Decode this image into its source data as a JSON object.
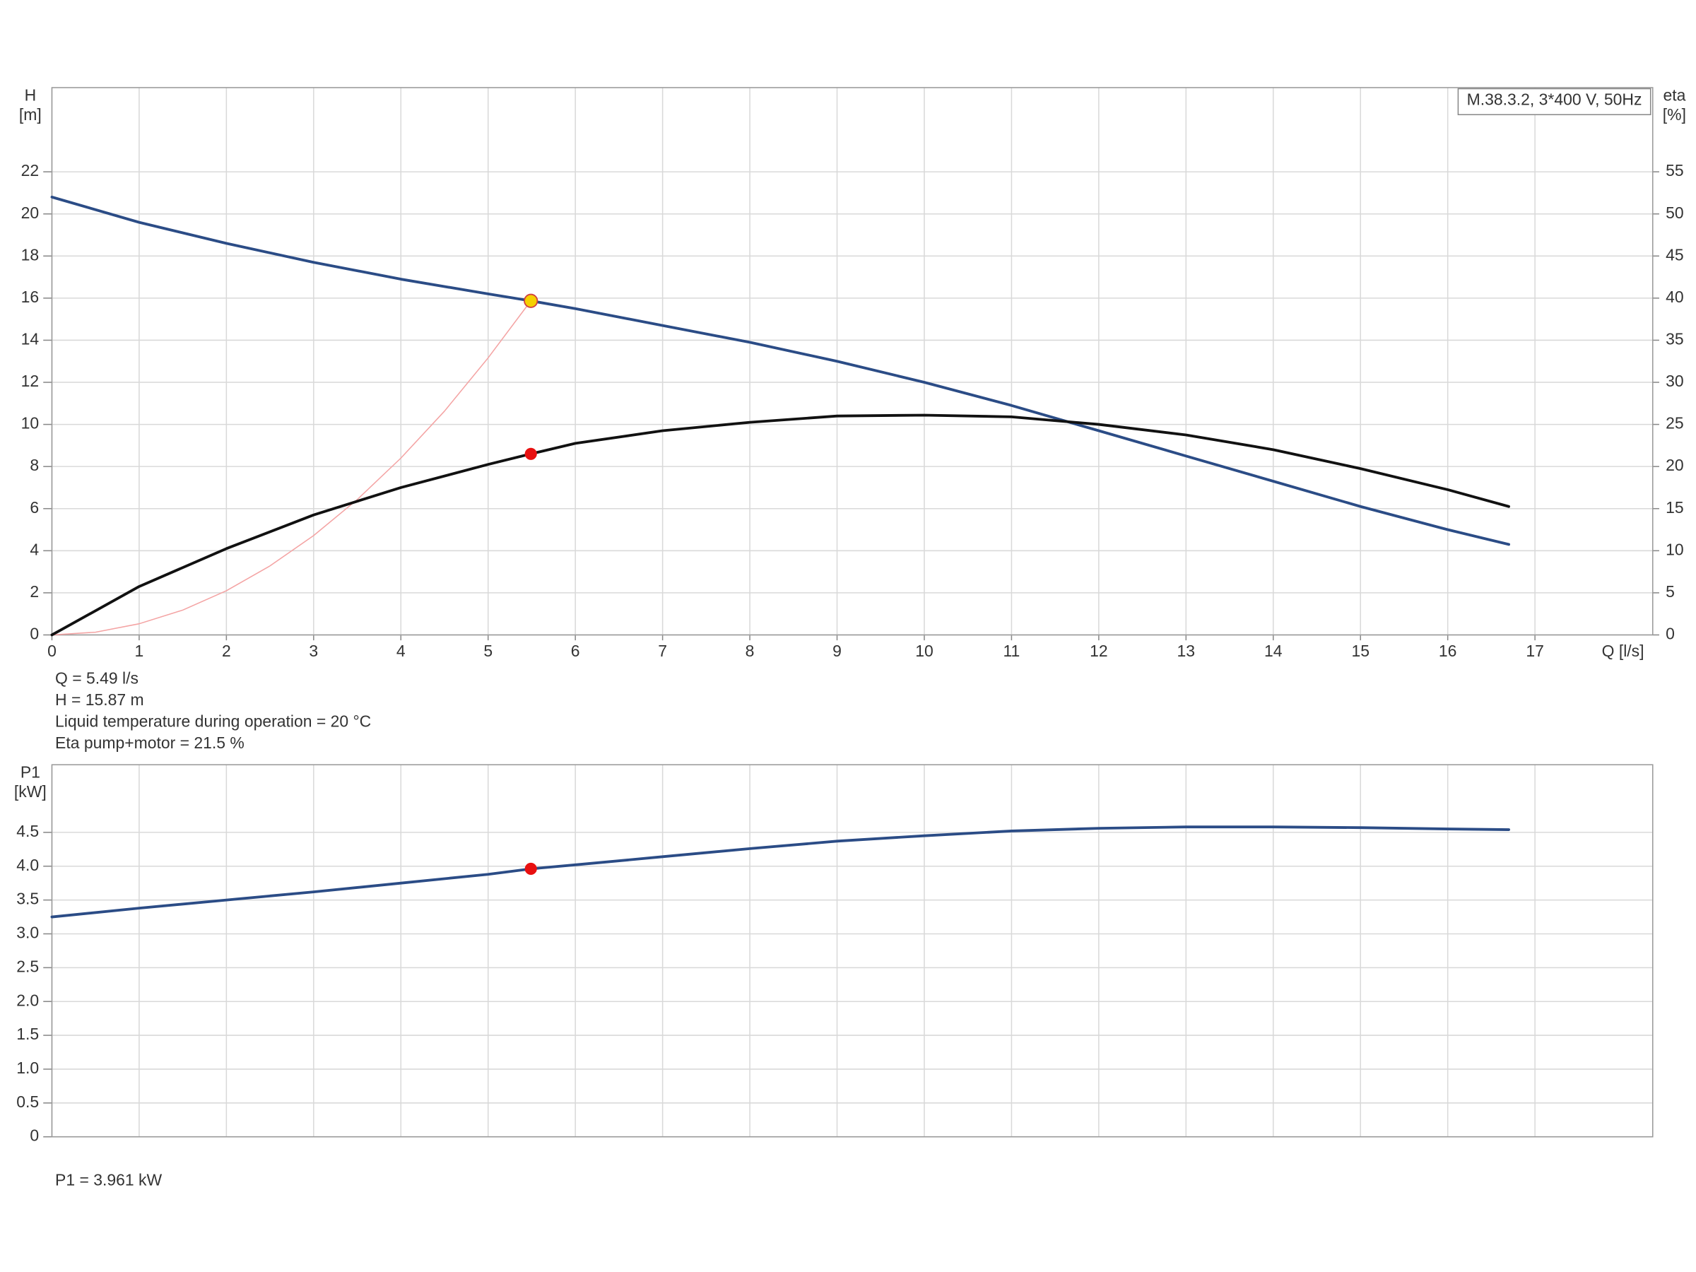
{
  "chart_data": [
    {
      "type": "line",
      "ylabel": [
        "H",
        "[m]"
      ],
      "y2label": [
        "eta",
        "[%]"
      ],
      "xlabel": "Q [l/s]",
      "legend_text": "M.38.3.2, 3*400 V, 50Hz",
      "legend_position": "top-right",
      "xlim": [
        0,
        18.35
      ],
      "xticks": [
        0,
        1,
        2,
        3,
        4,
        5,
        6,
        7,
        8,
        9,
        10,
        11,
        12,
        13,
        14,
        15,
        16,
        17
      ],
      "tick_labels": true,
      "ylim": [
        0,
        26
      ],
      "yticks": [
        0,
        2,
        4,
        6,
        8,
        10,
        12,
        14,
        16,
        18,
        20,
        22
      ],
      "y2lim": [
        0,
        65
      ],
      "y2ticks": [
        0,
        5,
        10,
        15,
        20,
        25,
        30,
        35,
        40,
        45,
        50,
        55
      ],
      "grid": true,
      "series": [
        {
          "color": "#f4a3a3",
          "width": 1,
          "x": [
            0,
            0.5,
            1,
            1.5,
            2,
            2.5,
            3,
            3.5,
            4,
            4.5,
            5,
            5.49
          ],
          "values": [
            0,
            0.13,
            0.53,
            1.18,
            2.1,
            3.28,
            4.72,
            6.43,
            8.4,
            10.63,
            13.16,
            15.87
          ]
        },
        {
          "color": "#2b4c86",
          "width": 2.5,
          "x": [
            0,
            1,
            2,
            3,
            4,
            5,
            5.49,
            6,
            7,
            8,
            9,
            10,
            11,
            12,
            13,
            14,
            15,
            16,
            16.7
          ],
          "values": [
            20.8,
            19.6,
            18.6,
            17.7,
            16.9,
            16.2,
            15.87,
            15.5,
            14.7,
            13.9,
            13.0,
            12.0,
            10.9,
            9.7,
            8.5,
            7.3,
            6.1,
            5.0,
            4.3
          ]
        },
        {
          "color": "#111111",
          "width": 2.5,
          "axis": "y2",
          "x": [
            0,
            1,
            2,
            3,
            4,
            5,
            5.49,
            6,
            7,
            8,
            9,
            10,
            11,
            12,
            13,
            14,
            15,
            16,
            16.7
          ],
          "values": [
            0,
            5.75,
            10.25,
            14.25,
            17.5,
            20.25,
            21.5,
            22.75,
            24.25,
            25.25,
            26,
            26.1,
            25.9,
            25,
            23.75,
            22,
            19.75,
            17.25,
            15.25
          ]
        }
      ],
      "points": [
        {
          "x": 5.49,
          "y": 15.87,
          "color": "#f5d000",
          "stroke": "#d04040"
        },
        {
          "x": 5.49,
          "y": 21.5,
          "axis": "y2",
          "color": "#e81010",
          "stroke": "#e81010"
        }
      ],
      "notes": [
        "Q = 5.49 l/s",
        "H = 15.87 m",
        "Liquid temperature during operation = 20 °C",
        "Eta pump+motor = 21.5 %"
      ]
    },
    {
      "type": "line",
      "ylabel": [
        "P1",
        "[kW]"
      ],
      "xlim": [
        0,
        18.35
      ],
      "xticks": [
        0,
        1,
        2,
        3,
        4,
        5,
        6,
        7,
        8,
        9,
        10,
        11,
        12,
        13,
        14,
        15,
        16,
        17
      ],
      "tick_labels": false,
      "ylim": [
        0,
        5.5
      ],
      "yticks": [
        0,
        0.5,
        {
          "value": 1,
          "label": "1.0"
        },
        1.5,
        {
          "value": 2,
          "label": "2.0"
        },
        2.5,
        {
          "value": 3,
          "label": "3.0"
        },
        3.5,
        {
          "value": 4,
          "label": "4.0"
        },
        4.5
      ],
      "grid": true,
      "series": [
        {
          "color": "#2b4c86",
          "width": 2.5,
          "x": [
            0,
            1,
            2,
            3,
            4,
            5,
            5.49,
            6,
            7,
            8,
            9,
            10,
            11,
            12,
            13,
            14,
            15,
            16,
            16.7
          ],
          "values": [
            3.25,
            3.38,
            3.5,
            3.62,
            3.75,
            3.88,
            3.961,
            4.02,
            4.14,
            4.26,
            4.37,
            4.45,
            4.52,
            4.56,
            4.58,
            4.58,
            4.57,
            4.55,
            4.54
          ]
        }
      ],
      "points": [
        {
          "x": 5.49,
          "y": 3.961,
          "color": "#e81010",
          "stroke": "#e81010"
        }
      ],
      "notes": [
        "P1 = 3.961 kW"
      ]
    }
  ]
}
